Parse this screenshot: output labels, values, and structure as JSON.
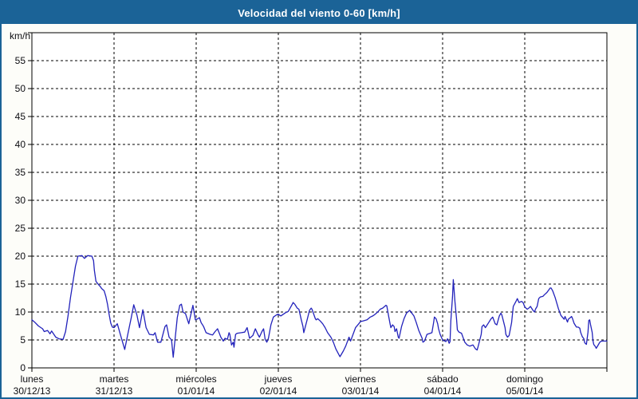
{
  "window": {
    "title": "Velocidad del viento 0-60 [km/h]"
  },
  "colors": {
    "titlebar_bg": "#1b6397",
    "titlebar_text": "#ffffff",
    "window_border": "#1b6397",
    "page_bg": "#fdfdf9",
    "plot_bg": "#ffffff",
    "line": "#2222bb",
    "grid": "#000000",
    "axis": "#000000",
    "label_text": "#0d0d12"
  },
  "chart_data": {
    "type": "line",
    "title": "Velocidad del viento 0-60 [km/h]",
    "xlabel": "",
    "ylabel": "km/h",
    "ylim": [
      0,
      60
    ],
    "ytick_interval": 5,
    "ytick_labels": [
      "0",
      "5",
      "10",
      "15",
      "20",
      "25",
      "30",
      "35",
      "40",
      "45",
      "50",
      "55"
    ],
    "top_tick_unlabeled": 60,
    "grid": "dashed",
    "legend_position": "none",
    "x_range_days": 7,
    "x_axis_days": [
      {
        "name": "lunes",
        "date": "30/12/13"
      },
      {
        "name": "martes",
        "date": "31/12/13"
      },
      {
        "name": "miércoles",
        "date": "01/01/14"
      },
      {
        "name": "jueves",
        "date": "02/01/14"
      },
      {
        "name": "viernes",
        "date": "03/01/14"
      },
      {
        "name": "sábado",
        "date": "04/01/14"
      },
      {
        "name": "domingo",
        "date": "05/01/14"
      }
    ],
    "series": [
      {
        "name": "Velocidad del viento [km/h]",
        "color": "#2222bb",
        "points": [
          [
            0,
            8.6
          ],
          [
            0.04,
            8.1
          ],
          [
            0.08,
            7.5
          ],
          [
            0.13,
            7
          ],
          [
            0.15,
            6.5
          ],
          [
            0.19,
            6.7
          ],
          [
            0.22,
            6.1
          ],
          [
            0.24,
            6.6
          ],
          [
            0.29,
            5.5
          ],
          [
            0.33,
            5.2
          ],
          [
            0.38,
            5.1
          ],
          [
            0.41,
            6.5
          ],
          [
            0.44,
            9.3
          ],
          [
            0.47,
            12.6
          ],
          [
            0.5,
            15.4
          ],
          [
            0.53,
            18.2
          ],
          [
            0.56,
            20
          ],
          [
            0.61,
            20.1
          ],
          [
            0.64,
            19.6
          ],
          [
            0.68,
            20.1
          ],
          [
            0.73,
            20
          ],
          [
            0.75,
            19.2
          ],
          [
            0.76,
            17.5
          ],
          [
            0.78,
            15.5
          ],
          [
            0.8,
            15.1
          ],
          [
            0.83,
            14.6
          ],
          [
            0.85,
            14.2
          ],
          [
            0.88,
            13.8
          ],
          [
            0.9,
            12.8
          ],
          [
            0.92,
            11.4
          ],
          [
            0.94,
            9.6
          ],
          [
            0.96,
            8
          ],
          [
            0.98,
            7.3
          ],
          [
            1,
            7.2
          ],
          [
            1.04,
            7.9
          ],
          [
            1.09,
            5.3
          ],
          [
            1.13,
            3.3
          ],
          [
            1.17,
            6.2
          ],
          [
            1.21,
            9
          ],
          [
            1.24,
            11.3
          ],
          [
            1.28,
            9.4
          ],
          [
            1.31,
            7.2
          ],
          [
            1.35,
            10.4
          ],
          [
            1.39,
            7.2
          ],
          [
            1.43,
            6
          ],
          [
            1.48,
            5.9
          ],
          [
            1.5,
            6.3
          ],
          [
            1.53,
            4.6
          ],
          [
            1.57,
            4.6
          ],
          [
            1.62,
            7.4
          ],
          [
            1.64,
            7.7
          ],
          [
            1.67,
            5.5
          ],
          [
            1.7,
            5
          ],
          [
            1.72,
            1.9
          ],
          [
            1.77,
            9
          ],
          [
            1.8,
            11.2
          ],
          [
            1.82,
            11.4
          ],
          [
            1.84,
            10
          ],
          [
            1.87,
            9.7
          ],
          [
            1.91,
            7.9
          ],
          [
            1.96,
            11.2
          ],
          [
            1.99,
            8.6
          ],
          [
            2.02,
            8.8
          ],
          [
            2.04,
            9
          ],
          [
            2.06,
            8.1
          ],
          [
            2.09,
            7.4
          ],
          [
            2.12,
            6.3
          ],
          [
            2.17,
            6
          ],
          [
            2.2,
            5.9
          ],
          [
            2.23,
            6.5
          ],
          [
            2.26,
            7
          ],
          [
            2.3,
            5.5
          ],
          [
            2.33,
            4.8
          ],
          [
            2.35,
            5.3
          ],
          [
            2.38,
            5.1
          ],
          [
            2.4,
            6.3
          ],
          [
            2.41,
            6
          ],
          [
            2.43,
            4.1
          ],
          [
            2.45,
            4.6
          ],
          [
            2.46,
            3.7
          ],
          [
            2.48,
            6
          ],
          [
            2.5,
            6.2
          ],
          [
            2.55,
            6.3
          ],
          [
            2.59,
            6.4
          ],
          [
            2.62,
            7.2
          ],
          [
            2.65,
            5.3
          ],
          [
            2.69,
            5.8
          ],
          [
            2.72,
            7
          ],
          [
            2.75,
            6
          ],
          [
            2.77,
            5.5
          ],
          [
            2.8,
            6.5
          ],
          [
            2.82,
            7
          ],
          [
            2.84,
            5.1
          ],
          [
            2.86,
            4.6
          ],
          [
            2.88,
            5.3
          ],
          [
            2.91,
            7.7
          ],
          [
            2.94,
            9.1
          ],
          [
            2.98,
            9.5
          ],
          [
            3,
            9.6
          ],
          [
            3.03,
            9.3
          ],
          [
            3.06,
            9.6
          ],
          [
            3.09,
            9.9
          ],
          [
            3.12,
            10.1
          ],
          [
            3.17,
            11.4
          ],
          [
            3.18,
            11.7
          ],
          [
            3.2,
            11.4
          ],
          [
            3.23,
            10.7
          ],
          [
            3.25,
            10.5
          ],
          [
            3.28,
            8.6
          ],
          [
            3.3,
            7.4
          ],
          [
            3.31,
            6.3
          ],
          [
            3.35,
            8.6
          ],
          [
            3.38,
            10.3
          ],
          [
            3.4,
            10.7
          ],
          [
            3.41,
            10.5
          ],
          [
            3.45,
            8.8
          ],
          [
            3.46,
            8.6
          ],
          [
            3.48,
            8.8
          ],
          [
            3.51,
            8.4
          ],
          [
            3.54,
            7.9
          ],
          [
            3.57,
            7.2
          ],
          [
            3.6,
            6.3
          ],
          [
            3.64,
            5.5
          ],
          [
            3.67,
            4.6
          ],
          [
            3.7,
            3.4
          ],
          [
            3.74,
            2.3
          ],
          [
            3.75,
            2
          ],
          [
            3.79,
            3
          ],
          [
            3.82,
            3.9
          ],
          [
            3.85,
            5.1
          ],
          [
            3.86,
            5.5
          ],
          [
            3.88,
            4.8
          ],
          [
            3.91,
            6
          ],
          [
            3.94,
            7.2
          ],
          [
            3.98,
            7.9
          ],
          [
            4,
            8.3
          ],
          [
            4.03,
            8.4
          ],
          [
            4.08,
            8.6
          ],
          [
            4.12,
            9.1
          ],
          [
            4.15,
            9.3
          ],
          [
            4.17,
            9.5
          ],
          [
            4.21,
            10
          ],
          [
            4.24,
            10.5
          ],
          [
            4.27,
            10.7
          ],
          [
            4.31,
            11.2
          ],
          [
            4.32,
            11.1
          ],
          [
            4.34,
            9.5
          ],
          [
            4.36,
            7.9
          ],
          [
            4.37,
            7.2
          ],
          [
            4.39,
            7.7
          ],
          [
            4.41,
            7.4
          ],
          [
            4.42,
            6.5
          ],
          [
            4.44,
            7
          ],
          [
            4.46,
            5.5
          ],
          [
            4.47,
            5.3
          ],
          [
            4.5,
            7.4
          ],
          [
            4.53,
            8.8
          ],
          [
            4.56,
            9.8
          ],
          [
            4.6,
            10.3
          ],
          [
            4.61,
            10.1
          ],
          [
            4.65,
            9.3
          ],
          [
            4.68,
            8.1
          ],
          [
            4.71,
            6.7
          ],
          [
            4.75,
            5.3
          ],
          [
            4.76,
            4.6
          ],
          [
            4.78,
            4.8
          ],
          [
            4.81,
            6
          ],
          [
            4.85,
            6.2
          ],
          [
            4.87,
            6.3
          ],
          [
            4.89,
            8.1
          ],
          [
            4.9,
            9.1
          ],
          [
            4.92,
            8.8
          ],
          [
            4.94,
            7.9
          ],
          [
            4.95,
            7
          ],
          [
            4.97,
            6
          ],
          [
            5,
            5
          ],
          [
            5.04,
            4.7
          ],
          [
            5.06,
            5.2
          ],
          [
            5.08,
            4.4
          ],
          [
            5.09,
            4.7
          ],
          [
            5.1,
            8.4
          ],
          [
            5.12,
            12.7
          ],
          [
            5.13,
            15.8
          ],
          [
            5.15,
            11.8
          ],
          [
            5.17,
            8.7
          ],
          [
            5.18,
            6.8
          ],
          [
            5.2,
            6.4
          ],
          [
            5.23,
            6.2
          ],
          [
            5.27,
            4.6
          ],
          [
            5.3,
            4.1
          ],
          [
            5.33,
            3.9
          ],
          [
            5.37,
            4.1
          ],
          [
            5.4,
            3.4
          ],
          [
            5.42,
            3.2
          ],
          [
            5.43,
            3.7
          ],
          [
            5.47,
            6
          ],
          [
            5.48,
            7.4
          ],
          [
            5.5,
            7.7
          ],
          [
            5.52,
            7.2
          ],
          [
            5.56,
            8.1
          ],
          [
            5.59,
            8.8
          ],
          [
            5.61,
            9.1
          ],
          [
            5.64,
            7.9
          ],
          [
            5.66,
            7.7
          ],
          [
            5.69,
            9.3
          ],
          [
            5.71,
            9.8
          ],
          [
            5.72,
            9.5
          ],
          [
            5.74,
            8.4
          ],
          [
            5.76,
            7.2
          ],
          [
            5.77,
            6
          ],
          [
            5.79,
            5.5
          ],
          [
            5.81,
            5.8
          ],
          [
            5.84,
            8.1
          ],
          [
            5.85,
            9.5
          ],
          [
            5.86,
            11
          ],
          [
            5.9,
            12.1
          ],
          [
            5.91,
            12.4
          ],
          [
            5.93,
            11.7
          ],
          [
            5.96,
            11.9
          ],
          [
            5.98,
            11.7
          ],
          [
            6,
            10.9
          ],
          [
            6.03,
            10.5
          ],
          [
            6.05,
            10.7
          ],
          [
            6.07,
            11
          ],
          [
            6.1,
            10.3
          ],
          [
            6.12,
            10
          ],
          [
            6.13,
            10.5
          ],
          [
            6.15,
            11
          ],
          [
            6.17,
            12.4
          ],
          [
            6.19,
            12.7
          ],
          [
            6.22,
            12.8
          ],
          [
            6.24,
            13.1
          ],
          [
            6.27,
            13.5
          ],
          [
            6.31,
            14.3
          ],
          [
            6.32,
            14.3
          ],
          [
            6.34,
            13.8
          ],
          [
            6.37,
            12.6
          ],
          [
            6.41,
            10.6
          ],
          [
            6.44,
            9.4
          ],
          [
            6.48,
            8.7
          ],
          [
            6.49,
            9.2
          ],
          [
            6.52,
            8.2
          ],
          [
            6.53,
            8.7
          ],
          [
            6.57,
            9.2
          ],
          [
            6.58,
            8.9
          ],
          [
            6.6,
            8
          ],
          [
            6.62,
            7.5
          ],
          [
            6.63,
            7.3
          ],
          [
            6.65,
            7.3
          ],
          [
            6.67,
            7.1
          ],
          [
            6.68,
            6.4
          ],
          [
            6.7,
            5.6
          ],
          [
            6.72,
            5.2
          ],
          [
            6.73,
            4.5
          ],
          [
            6.75,
            4.2
          ],
          [
            6.77,
            6.4
          ],
          [
            6.78,
            8.5
          ],
          [
            6.79,
            8.6
          ],
          [
            6.8,
            7.8
          ],
          [
            6.82,
            6.4
          ],
          [
            6.83,
            4.9
          ],
          [
            6.84,
            4.2
          ],
          [
            6.86,
            3.8
          ],
          [
            6.87,
            3.5
          ],
          [
            6.89,
            4
          ],
          [
            6.91,
            4.5
          ],
          [
            6.92,
            4.7
          ],
          [
            6.94,
            4.8
          ],
          [
            6.97,
            4.8
          ],
          [
            7,
            4.8
          ]
        ]
      }
    ]
  }
}
